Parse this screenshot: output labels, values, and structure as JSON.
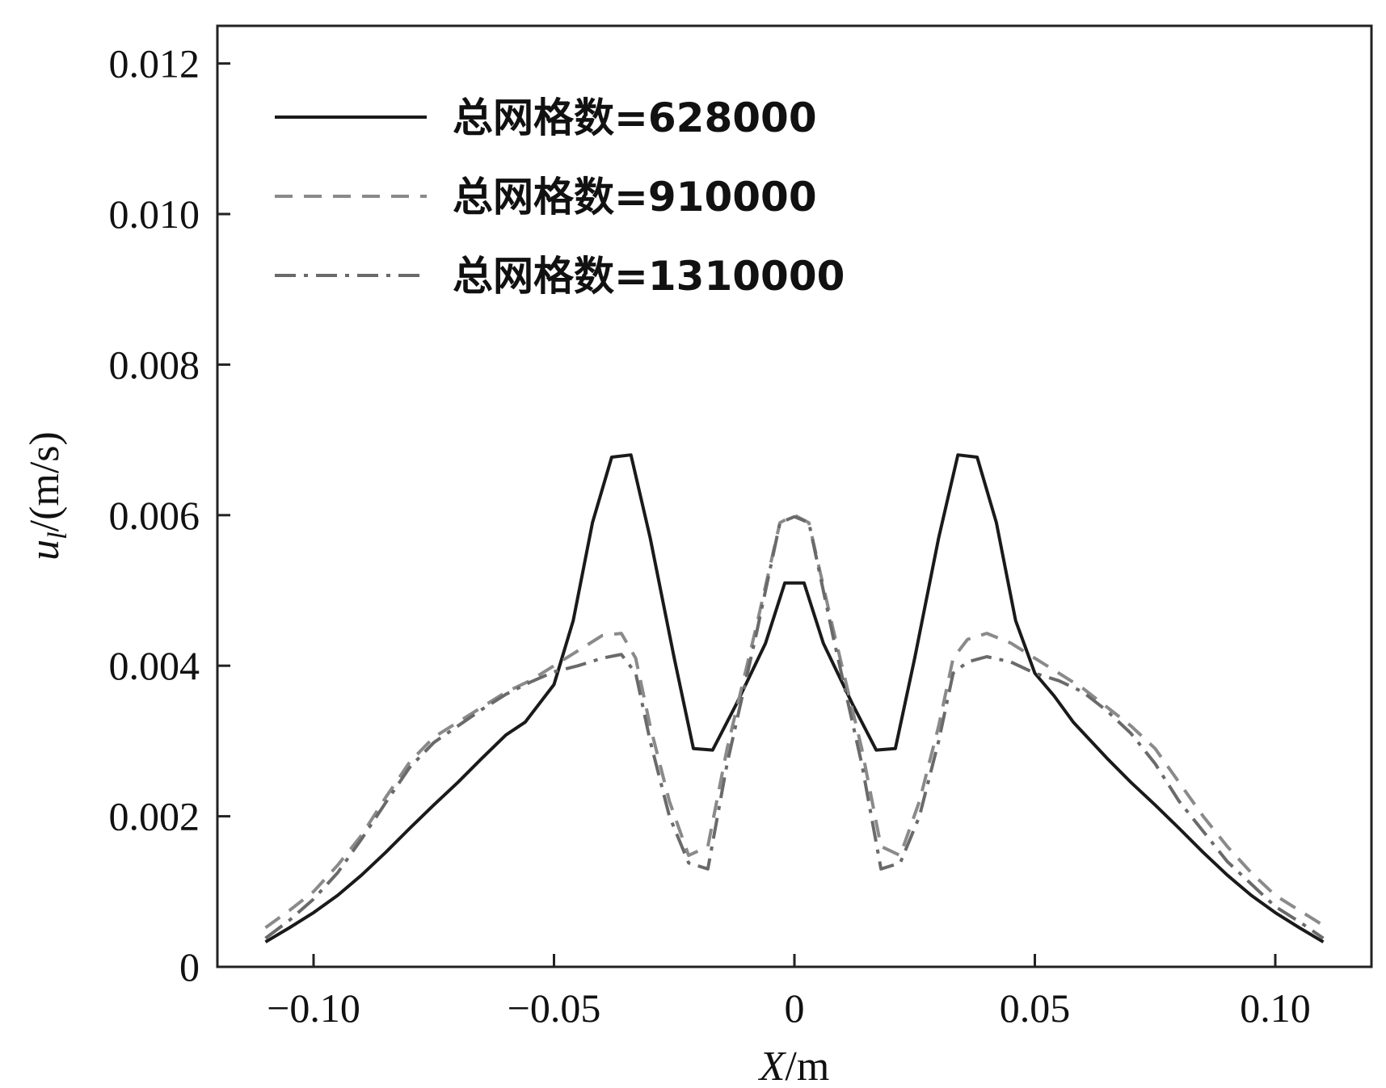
{
  "chart_data": {
    "type": "line",
    "xlabel": {
      "main": "X",
      "unit": "/m"
    },
    "ylabel": {
      "main": "u",
      "sub": "l",
      "unit": "/(m/s)"
    },
    "xlim": [
      -0.12,
      0.12
    ],
    "ylim": [
      0,
      0.0125
    ],
    "x_ticks": [
      {
        "value": -0.1,
        "label": "−0.10"
      },
      {
        "value": -0.05,
        "label": "−0.05"
      },
      {
        "value": 0,
        "label": "0"
      },
      {
        "value": 0.05,
        "label": "0.05"
      },
      {
        "value": 0.1,
        "label": "0.10"
      }
    ],
    "y_ticks": [
      {
        "value": 0,
        "label": "0"
      },
      {
        "value": 0.002,
        "label": "0.002"
      },
      {
        "value": 0.004,
        "label": "0.004"
      },
      {
        "value": 0.006,
        "label": "0.006"
      },
      {
        "value": 0.008,
        "label": "0.008"
      },
      {
        "value": 0.01,
        "label": "0.010"
      },
      {
        "value": 0.012,
        "label": "0.012"
      }
    ],
    "grid": false,
    "legend_position": "top-left",
    "series": [
      {
        "name": "总网格数=628000",
        "style": "solid",
        "color": "#1a1a1a",
        "points": [
          [
            -0.11,
            0.00033
          ],
          [
            -0.105,
            0.00052
          ],
          [
            -0.1,
            0.00072
          ],
          [
            -0.095,
            0.00095
          ],
          [
            -0.09,
            0.00122
          ],
          [
            -0.085,
            0.00152
          ],
          [
            -0.08,
            0.00184
          ],
          [
            -0.075,
            0.00215
          ],
          [
            -0.07,
            0.00245
          ],
          [
            -0.065,
            0.00277
          ],
          [
            -0.06,
            0.00308
          ],
          [
            -0.056,
            0.00325
          ],
          [
            -0.05,
            0.00375
          ],
          [
            -0.046,
            0.0046
          ],
          [
            -0.042,
            0.0059
          ],
          [
            -0.038,
            0.00677
          ],
          [
            -0.034,
            0.0068
          ],
          [
            -0.03,
            0.0057
          ],
          [
            -0.025,
            0.0041
          ],
          [
            -0.021,
            0.0029
          ],
          [
            -0.017,
            0.00288
          ],
          [
            -0.012,
            0.0035
          ],
          [
            -0.006,
            0.0043
          ],
          [
            -0.002,
            0.0051
          ],
          [
            0.002,
            0.0051
          ],
          [
            0.006,
            0.0043
          ],
          [
            0.012,
            0.0035
          ],
          [
            0.017,
            0.00288
          ],
          [
            0.021,
            0.0029
          ],
          [
            0.025,
            0.0041
          ],
          [
            0.03,
            0.0057
          ],
          [
            0.034,
            0.0068
          ],
          [
            0.038,
            0.00677
          ],
          [
            0.042,
            0.0059
          ],
          [
            0.046,
            0.0046
          ],
          [
            0.05,
            0.0039
          ],
          [
            0.054,
            0.0036
          ],
          [
            0.058,
            0.00325
          ],
          [
            0.065,
            0.00277
          ],
          [
            0.07,
            0.00245
          ],
          [
            0.075,
            0.00215
          ],
          [
            0.08,
            0.00184
          ],
          [
            0.085,
            0.00152
          ],
          [
            0.09,
            0.00122
          ],
          [
            0.095,
            0.00095
          ],
          [
            0.1,
            0.00072
          ],
          [
            0.105,
            0.00052
          ],
          [
            0.11,
            0.00033
          ]
        ]
      },
      {
        "name": "总网格数=910000",
        "style": "dashed",
        "color": "#8a8a8a",
        "points": [
          [
            -0.11,
            0.00052
          ],
          [
            -0.105,
            0.00075
          ],
          [
            -0.1,
            0.001
          ],
          [
            -0.095,
            0.00135
          ],
          [
            -0.09,
            0.00175
          ],
          [
            -0.085,
            0.00225
          ],
          [
            -0.08,
            0.00272
          ],
          [
            -0.075,
            0.00305
          ],
          [
            -0.07,
            0.00325
          ],
          [
            -0.065,
            0.00345
          ],
          [
            -0.06,
            0.00365
          ],
          [
            -0.055,
            0.0038
          ],
          [
            -0.05,
            0.004
          ],
          [
            -0.045,
            0.0042
          ],
          [
            -0.04,
            0.0044
          ],
          [
            -0.036,
            0.00443
          ],
          [
            -0.033,
            0.0041
          ],
          [
            -0.03,
            0.0032
          ],
          [
            -0.026,
            0.0022
          ],
          [
            -0.022,
            0.00148
          ],
          [
            -0.018,
            0.0016
          ],
          [
            -0.014,
            0.0029
          ],
          [
            -0.008,
            0.0045
          ],
          [
            -0.003,
            0.0059
          ],
          [
            0.0,
            0.006
          ],
          [
            0.003,
            0.0059
          ],
          [
            0.008,
            0.0045
          ],
          [
            0.014,
            0.0029
          ],
          [
            0.018,
            0.0016
          ],
          [
            0.022,
            0.00148
          ],
          [
            0.026,
            0.0022
          ],
          [
            0.03,
            0.0032
          ],
          [
            0.033,
            0.0041
          ],
          [
            0.036,
            0.00435
          ],
          [
            0.04,
            0.00443
          ],
          [
            0.045,
            0.0043
          ],
          [
            0.05,
            0.0041
          ],
          [
            0.055,
            0.0039
          ],
          [
            0.06,
            0.0037
          ],
          [
            0.065,
            0.00345
          ],
          [
            0.07,
            0.0032
          ],
          [
            0.075,
            0.0029
          ],
          [
            0.08,
            0.00245
          ],
          [
            0.085,
            0.002
          ],
          [
            0.09,
            0.0016
          ],
          [
            0.095,
            0.00125
          ],
          [
            0.1,
            0.00095
          ],
          [
            0.105,
            0.00075
          ],
          [
            0.11,
            0.00055
          ]
        ]
      },
      {
        "name": "总网格数=1310000",
        "style": "dashdot",
        "color": "#6a6a6a",
        "points": [
          [
            -0.11,
            0.00038
          ],
          [
            -0.105,
            0.00062
          ],
          [
            -0.1,
            0.0009
          ],
          [
            -0.095,
            0.00125
          ],
          [
            -0.09,
            0.0017
          ],
          [
            -0.085,
            0.00218
          ],
          [
            -0.08,
            0.00265
          ],
          [
            -0.075,
            0.00298
          ],
          [
            -0.07,
            0.0032
          ],
          [
            -0.065,
            0.00342
          ],
          [
            -0.06,
            0.00362
          ],
          [
            -0.055,
            0.00378
          ],
          [
            -0.05,
            0.00392
          ],
          [
            -0.045,
            0.004
          ],
          [
            -0.04,
            0.0041
          ],
          [
            -0.036,
            0.00415
          ],
          [
            -0.033,
            0.0039
          ],
          [
            -0.03,
            0.003
          ],
          [
            -0.026,
            0.002
          ],
          [
            -0.022,
            0.00138
          ],
          [
            -0.018,
            0.0013
          ],
          [
            -0.014,
            0.0027
          ],
          [
            -0.008,
            0.0044
          ],
          [
            -0.003,
            0.0059
          ],
          [
            0.0,
            0.00598
          ],
          [
            0.003,
            0.0059
          ],
          [
            0.008,
            0.0044
          ],
          [
            0.014,
            0.0027
          ],
          [
            0.018,
            0.0013
          ],
          [
            0.022,
            0.00138
          ],
          [
            0.026,
            0.002
          ],
          [
            0.03,
            0.003
          ],
          [
            0.033,
            0.0039
          ],
          [
            0.036,
            0.00405
          ],
          [
            0.04,
            0.00412
          ],
          [
            0.045,
            0.00405
          ],
          [
            0.05,
            0.0039
          ],
          [
            0.055,
            0.0038
          ],
          [
            0.06,
            0.00365
          ],
          [
            0.065,
            0.0034
          ],
          [
            0.07,
            0.0031
          ],
          [
            0.075,
            0.0027
          ],
          [
            0.08,
            0.0022
          ],
          [
            0.085,
            0.0018
          ],
          [
            0.09,
            0.0014
          ],
          [
            0.095,
            0.0011
          ],
          [
            0.1,
            0.0008
          ],
          [
            0.105,
            0.0006
          ],
          [
            0.11,
            0.00038
          ]
        ]
      }
    ]
  }
}
